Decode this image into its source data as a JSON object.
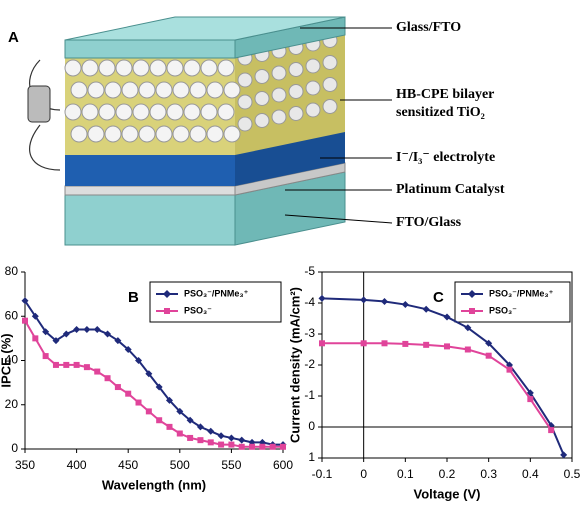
{
  "panel_a": {
    "label": "A",
    "glass_top": "Glass/FTO",
    "tio2_line1": "HB-CPE bilayer",
    "tio2_line2": "sensitized TiO₂",
    "electrolyte": "I⁻/I₃⁻ electrolyte",
    "platinum": "Platinum Catalyst",
    "glass_bottom": "FTO/Glass"
  },
  "chart_data": [
    {
      "type": "line",
      "panel_label": "B",
      "x_label": "Wavelength (nm)",
      "y_label": "IPCE (%)",
      "x": [
        350,
        360,
        370,
        380,
        390,
        400,
        410,
        420,
        430,
        440,
        450,
        460,
        470,
        480,
        490,
        500,
        510,
        520,
        530,
        540,
        550,
        560,
        570,
        580,
        590,
        600
      ],
      "series": [
        {
          "name": "PSO₃⁻/PNMe₃⁺",
          "color": "#1f2a7a",
          "marker": "diamond",
          "values": [
            67,
            60,
            53,
            49,
            52,
            54,
            54,
            54,
            52,
            49,
            45,
            40,
            34,
            28,
            22,
            17,
            13,
            10,
            8,
            6,
            5,
            4,
            3,
            3,
            2,
            2
          ]
        },
        {
          "name": "PSO₃⁻",
          "color": "#e0449a",
          "marker": "square",
          "values": [
            58,
            50,
            42,
            38,
            38,
            38,
            37,
            35,
            32,
            28,
            25,
            21,
            17,
            13,
            10,
            7,
            5,
            4,
            3,
            2,
            2,
            1,
            1,
            1,
            1,
            1
          ]
        }
      ],
      "xlim": [
        350,
        600
      ],
      "xticks": [
        350,
        400,
        450,
        500,
        550,
        600
      ],
      "ylim": [
        0,
        80
      ],
      "yticks": [
        0,
        20,
        40,
        60,
        80
      ],
      "frame": false
    },
    {
      "type": "line",
      "panel_label": "C",
      "x_label": "Voltage (V)",
      "y_label": "Current density (mA/cm²)",
      "x": [
        -0.1,
        0,
        0.05,
        0.1,
        0.15,
        0.2,
        0.25,
        0.3,
        0.35,
        0.4,
        0.45,
        0.48
      ],
      "series": [
        {
          "name": "PSO₃⁻/PNMe₃⁺",
          "color": "#1f2a7a",
          "marker": "diamond",
          "values": [
            -4.15,
            -4.1,
            -4.05,
            -3.95,
            -3.8,
            -3.55,
            -3.2,
            -2.7,
            -2.0,
            -1.1,
            -0.05,
            0.9
          ]
        },
        {
          "name": "PSO₃⁻",
          "color": "#e0449a",
          "marker": "square",
          "values": [
            -2.7,
            -2.7,
            -2.7,
            -2.68,
            -2.65,
            -2.6,
            -2.5,
            -2.3,
            -1.85,
            -0.9,
            0.1,
            null
          ]
        }
      ],
      "xlim": [
        -0.1,
        0.5
      ],
      "xticks": [
        -0.1,
        0,
        0.1,
        0.2,
        0.3,
        0.4,
        0.5
      ],
      "ylim": [
        1,
        -5
      ],
      "yticks": [
        -5,
        -4,
        -3,
        -2,
        -1,
        0,
        1
      ],
      "frame": true
    }
  ]
}
